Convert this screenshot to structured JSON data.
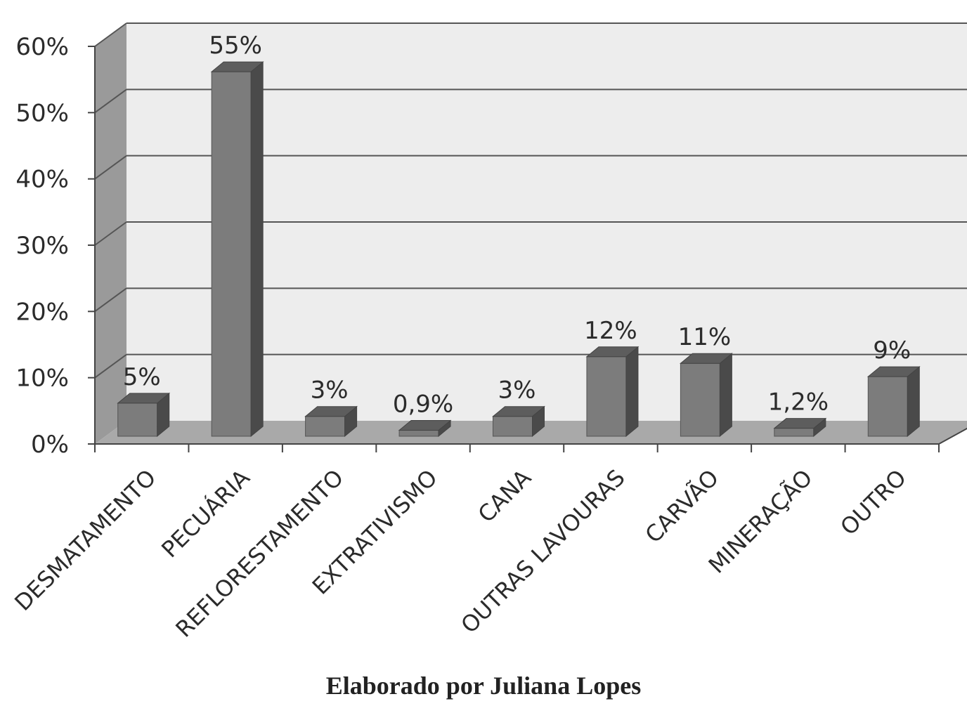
{
  "chart_data": {
    "type": "bar",
    "style": "3d-column",
    "categories": [
      "DESMATAMENTO",
      "PECUÁRIA",
      "REFLORESTAMENTO",
      "EXTRATIVISMO",
      "CANA",
      "OUTRAS LAVOURAS",
      "CARVÃO",
      "MINERAÇÃO",
      "OUTRO"
    ],
    "values": [
      5,
      55,
      3,
      0.9,
      3,
      12,
      11,
      1.2,
      9
    ],
    "data_labels": [
      "5%",
      "55%",
      "3%",
      "0,9%",
      "3%",
      "12%",
      "11%",
      "1,2%",
      "9%"
    ],
    "y_ticks": [
      "0%",
      "10%",
      "20%",
      "30%",
      "40%",
      "50%",
      "60%"
    ],
    "ylim": [
      0,
      60
    ],
    "grid": true,
    "legend": "none",
    "colors": {
      "bar_front": "#7c7c7c",
      "bar_top": "#5d5d5d",
      "bar_side": "#4a4a4a",
      "wall": "#ededed",
      "side_wall": "#9a9a9a",
      "floor": "#a9a9a9",
      "grid": "#555555"
    }
  },
  "caption": "Elaborado por Juliana Lopes"
}
